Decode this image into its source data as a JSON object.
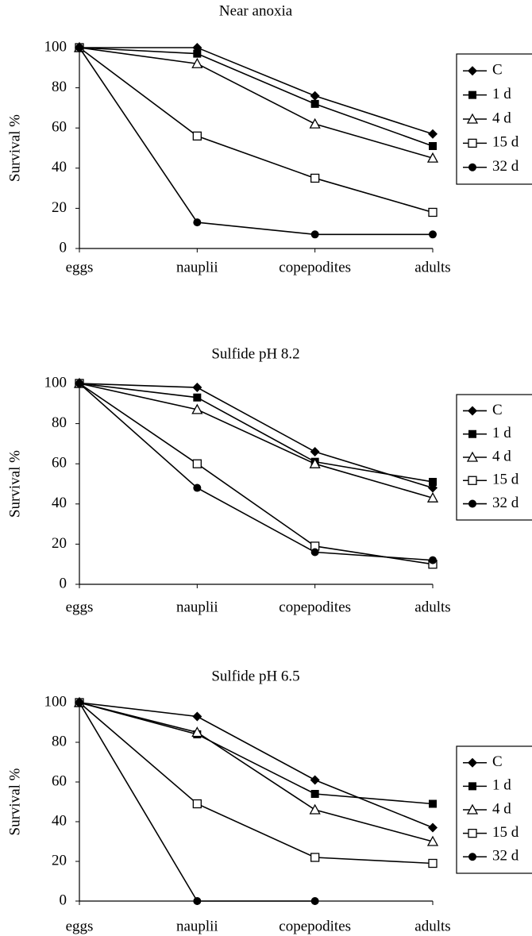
{
  "chart_data": [
    {
      "type": "line",
      "title": "Near anoxia",
      "ylabel": "Survival %",
      "categories": [
        "eggs",
        "nauplii",
        "copepodites",
        "adults"
      ],
      "ylim": [
        0,
        100
      ],
      "yticks": [
        0,
        20,
        40,
        60,
        80,
        100
      ],
      "grid": false,
      "legend": "right",
      "series": [
        {
          "name": "C",
          "color": "#000000",
          "marker": "diamond",
          "values": [
            100,
            100,
            76,
            57
          ]
        },
        {
          "name": "1 d",
          "color": "#000000",
          "marker": "square",
          "values": [
            100,
            97,
            72,
            51
          ]
        },
        {
          "name": "4 d",
          "color": "#000000",
          "marker": "triangle-open",
          "values": [
            100,
            92,
            62,
            45
          ]
        },
        {
          "name": "15 d",
          "color": "#000000",
          "marker": "square-open",
          "values": [
            100,
            56,
            35,
            18
          ]
        },
        {
          "name": "32 d",
          "color": "#000000",
          "marker": "circle",
          "values": [
            100,
            13,
            7,
            7
          ]
        }
      ]
    },
    {
      "type": "line",
      "title": "Sulfide pH 8.2",
      "ylabel": "Survival %",
      "categories": [
        "eggs",
        "nauplii",
        "copepodites",
        "adults"
      ],
      "ylim": [
        0,
        100
      ],
      "yticks": [
        0,
        20,
        40,
        60,
        80,
        100
      ],
      "grid": false,
      "legend": "right",
      "series": [
        {
          "name": "C",
          "color": "#000000",
          "marker": "diamond",
          "values": [
            100,
            98,
            66,
            48
          ]
        },
        {
          "name": "1 d",
          "color": "#000000",
          "marker": "square",
          "values": [
            100,
            93,
            61,
            51
          ]
        },
        {
          "name": "4 d",
          "color": "#000000",
          "marker": "triangle-open",
          "values": [
            100,
            87,
            60,
            43
          ]
        },
        {
          "name": "15 d",
          "color": "#000000",
          "marker": "square-open",
          "values": [
            100,
            60,
            19,
            10
          ]
        },
        {
          "name": "32 d",
          "color": "#000000",
          "marker": "circle",
          "values": [
            100,
            48,
            16,
            12
          ]
        }
      ]
    },
    {
      "type": "line",
      "title": "Sulfide pH 6.5",
      "ylabel": "Survival %",
      "categories": [
        "eggs",
        "nauplii",
        "copepodites",
        "adults"
      ],
      "ylim": [
        0,
        100
      ],
      "yticks": [
        0,
        20,
        40,
        60,
        80,
        100
      ],
      "grid": false,
      "legend": "right",
      "series": [
        {
          "name": "C",
          "color": "#000000",
          "marker": "diamond",
          "values": [
            100,
            93,
            61,
            37
          ]
        },
        {
          "name": "1 d",
          "color": "#000000",
          "marker": "square",
          "values": [
            100,
            84,
            54,
            49
          ]
        },
        {
          "name": "4 d",
          "color": "#000000",
          "marker": "triangle-open",
          "values": [
            100,
            85,
            46,
            30
          ]
        },
        {
          "name": "15 d",
          "color": "#000000",
          "marker": "square-open",
          "values": [
            100,
            49,
            22,
            19
          ]
        },
        {
          "name": "32 d",
          "color": "#000000",
          "marker": "circle",
          "values": [
            100,
            0,
            0,
            null
          ]
        }
      ]
    }
  ]
}
